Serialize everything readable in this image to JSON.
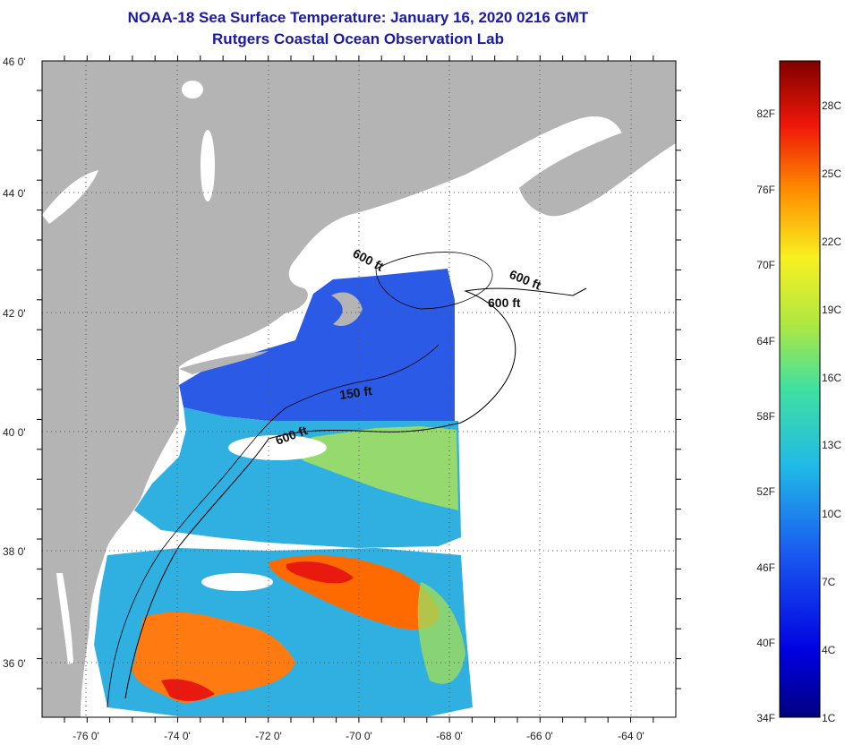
{
  "header": {
    "title": "NOAA-18 Sea Surface Temperature:  January 16, 2020 0216 GMT",
    "subtitle": "Rutgers Coastal Ocean Observation Lab"
  },
  "map": {
    "lon_range": [
      -77,
      -63
    ],
    "lat_range": [
      35,
      46
    ],
    "lat_ticks": [
      "46 0'",
      "44 0'",
      "42 0'",
      "40 0'",
      "38 0'",
      "36 0'"
    ],
    "lon_ticks": [
      "-76 0'",
      "-74 0'",
      "-72 0'",
      "-70 0'",
      "-68 0'",
      "-66 0'",
      "-64 0'"
    ],
    "contour_labels": [
      "600 ft",
      "600 ft",
      "600 ft",
      "150 ft",
      "600 ft"
    ],
    "colors": {
      "land": "#b4b4b4",
      "cold": "#2a5ae6",
      "cool": "#30b0e0",
      "mid": "#a8e05a",
      "warm": "#ff6a00",
      "hot": "#e81a10"
    }
  },
  "colorbar": {
    "fahrenheit_labels": [
      "82F",
      "76F",
      "70F",
      "64F",
      "58F",
      "52F",
      "46F",
      "40F",
      "34F"
    ],
    "celsius_labels": [
      "28C",
      "25C",
      "22C",
      "19C",
      "16C",
      "13C",
      "10C",
      "7C",
      "4C",
      "1C"
    ]
  }
}
